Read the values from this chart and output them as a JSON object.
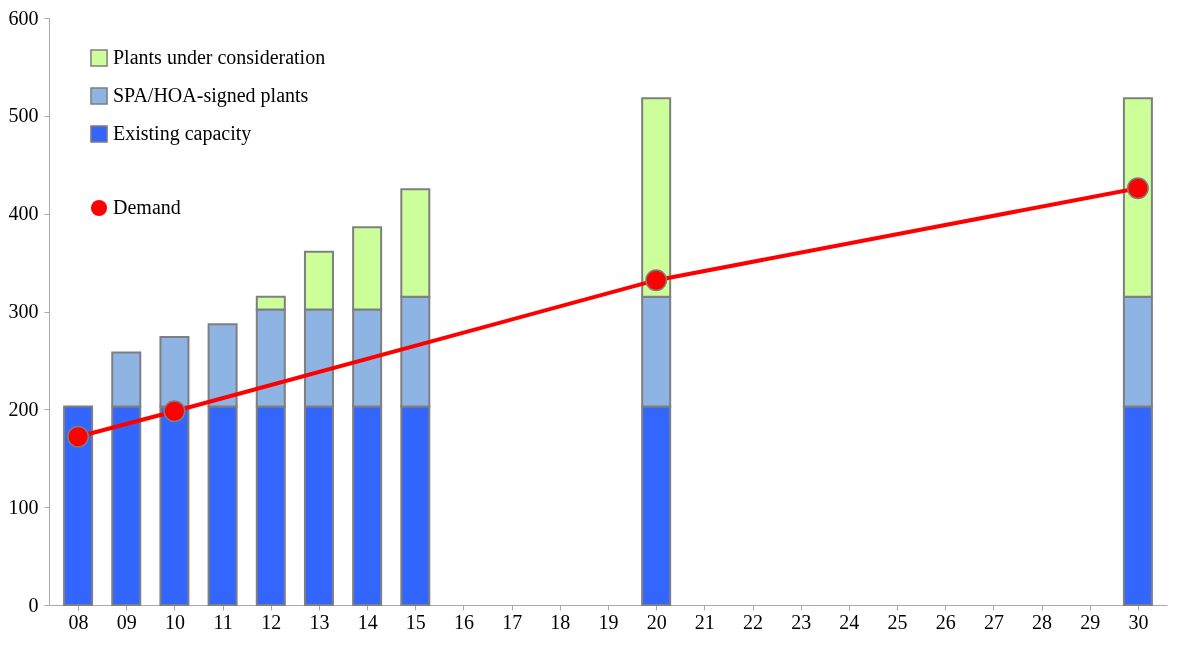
{
  "chart_data": {
    "type": "bar",
    "stacked": true,
    "legend": "top left",
    "grid": false,
    "categories": [
      "08",
      "09",
      "10",
      "11",
      "12",
      "13",
      "14",
      "15",
      "16",
      "17",
      "18",
      "19",
      "20",
      "21",
      "22",
      "23",
      "24",
      "25",
      "26",
      "27",
      "28",
      "29",
      "30"
    ],
    "ylim": [
      0,
      600
    ],
    "yticks": [
      0,
      100,
      200,
      300,
      400,
      500,
      600
    ],
    "series": [
      {
        "name": "Existing capacity",
        "color": "#3366ff",
        "values": [
          203,
          203,
          203,
          203,
          203,
          203,
          203,
          203,
          null,
          null,
          null,
          null,
          203,
          null,
          null,
          null,
          null,
          null,
          null,
          null,
          null,
          null,
          203
        ]
      },
      {
        "name": "SPA/HOA-signed plants",
        "color": "#8eb4e3",
        "values": [
          null,
          55,
          71,
          84,
          99,
          99,
          99,
          112,
          null,
          null,
          null,
          null,
          112,
          null,
          null,
          null,
          null,
          null,
          null,
          null,
          null,
          null,
          112
        ]
      },
      {
        "name": "Plants under consideration",
        "color": "#ccff99",
        "values": [
          null,
          null,
          null,
          null,
          13,
          59,
          84,
          110,
          null,
          null,
          null,
          null,
          203,
          null,
          null,
          null,
          null,
          null,
          null,
          null,
          null,
          null,
          203
        ]
      },
      {
        "name": "Demand",
        "type": "line",
        "marker": "circle",
        "line_style": "solid",
        "color": "#ff0000",
        "values": [
          172,
          null,
          198,
          null,
          null,
          null,
          null,
          null,
          null,
          null,
          null,
          null,
          332,
          null,
          null,
          null,
          null,
          null,
          null,
          null,
          null,
          null,
          426
        ]
      }
    ]
  }
}
